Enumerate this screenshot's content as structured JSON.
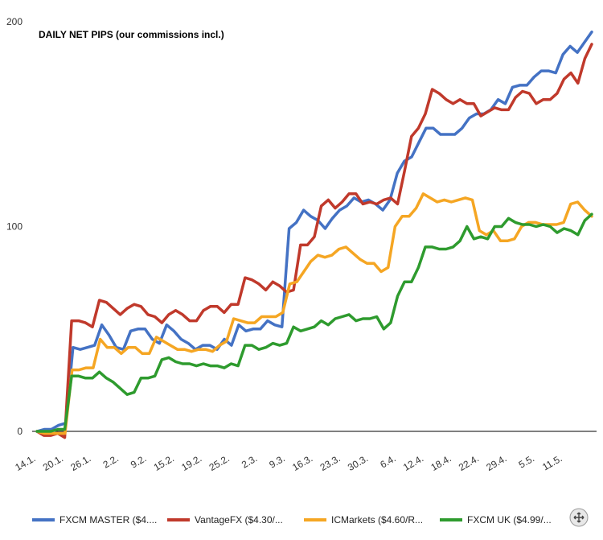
{
  "chart_data": {
    "type": "line",
    "title": "DAILY NET PIPS (our commissions incl.)",
    "xlabel": "",
    "ylabel": "",
    "ylim": [
      0,
      200
    ],
    "yticks": [
      0,
      100,
      200
    ],
    "grid": false,
    "legend_position": "bottom",
    "x_tick_labels": [
      "14.1.",
      "20.1.",
      "26.1.",
      "2.2.",
      "9.2.",
      "15.2.",
      "19.2.",
      "25.2.",
      "2.3.",
      "9.3.",
      "16.3.",
      "23.3.",
      "30.3.",
      "6.4.",
      "12.4.",
      "18.4.",
      "22.4.",
      "29.4.",
      "5.5.",
      "11.5."
    ],
    "series": [
      {
        "name": "FXCM MASTER ($4....",
        "color": "#4472C4",
        "values": [
          0,
          1,
          1,
          3,
          4,
          41,
          40,
          41,
          42,
          52,
          47,
          41,
          40,
          49,
          50,
          50,
          45,
          43,
          52,
          49,
          45,
          43,
          40,
          42,
          42,
          40,
          45,
          42,
          52,
          49,
          50,
          50,
          54,
          52,
          51,
          99,
          102,
          108,
          105,
          103,
          99,
          104,
          108,
          110,
          114,
          112,
          113,
          111,
          108,
          113,
          126,
          132,
          134,
          141,
          148,
          148,
          145,
          145,
          145,
          148,
          153,
          155,
          155,
          157,
          162,
          160,
          168,
          169,
          169,
          173,
          176,
          176,
          175,
          184,
          188,
          185,
          190,
          195
        ]
      },
      {
        "name": "VantageFX ($4.30/...",
        "color": "#C0392B",
        "values": [
          0,
          -2,
          -2,
          -1,
          -3,
          54,
          54,
          53,
          51,
          64,
          63,
          60,
          57,
          60,
          62,
          61,
          57,
          56,
          53,
          57,
          59,
          57,
          54,
          54,
          59,
          61,
          61,
          58,
          62,
          62,
          75,
          74,
          72,
          69,
          73,
          71,
          68,
          69,
          91,
          91,
          95,
          110,
          113,
          109,
          112,
          116,
          116,
          111,
          112,
          111,
          113,
          114,
          111,
          127,
          144,
          148,
          155,
          167,
          165,
          162,
          160,
          162,
          160,
          160,
          154,
          156,
          158,
          157,
          157,
          163,
          166,
          165,
          160,
          162,
          162,
          165,
          172,
          175,
          170,
          182,
          189
        ]
      },
      {
        "name": "ICMarkets ($4.60/R...",
        "color": "#F5A623",
        "values": [
          0,
          -1,
          -1,
          -1,
          -1,
          30,
          30,
          31,
          31,
          45,
          41,
          41,
          38,
          41,
          41,
          38,
          38,
          46,
          44,
          42,
          40,
          40,
          39,
          40,
          40,
          39,
          42,
          44,
          55,
          54,
          53,
          53,
          56,
          56,
          56,
          58,
          72,
          73,
          78,
          83,
          86,
          85,
          86,
          89,
          90,
          87,
          84,
          82,
          82,
          78,
          80,
          100,
          105,
          105,
          109,
          116,
          114,
          112,
          113,
          112,
          113,
          114,
          113,
          98,
          96,
          98,
          93,
          93,
          94,
          100,
          102,
          102,
          101,
          101,
          101,
          102,
          111,
          112,
          108,
          105
        ]
      },
      {
        "name": "FXCM UK ($4.99/...",
        "color": "#2E9B2E",
        "values": [
          0,
          0,
          0,
          1,
          1,
          27,
          27,
          26,
          26,
          29,
          26,
          24,
          21,
          18,
          19,
          26,
          26,
          27,
          35,
          36,
          34,
          33,
          33,
          32,
          33,
          32,
          32,
          31,
          33,
          32,
          42,
          42,
          40,
          41,
          43,
          42,
          43,
          51,
          49,
          50,
          51,
          54,
          52,
          55,
          56,
          57,
          54,
          55,
          55,
          56,
          50,
          53,
          66,
          73,
          73,
          80,
          90,
          90,
          89,
          89,
          90,
          93,
          100,
          94,
          95,
          94,
          100,
          100,
          104,
          102,
          101,
          101,
          100,
          101,
          100,
          97,
          99,
          98,
          96,
          103,
          106
        ]
      }
    ]
  }
}
